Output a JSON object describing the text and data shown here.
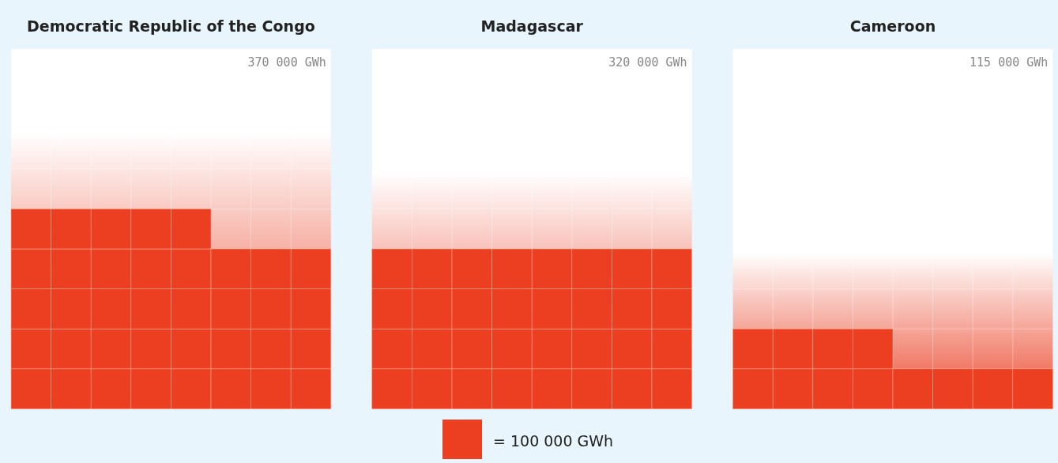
{
  "chart_data": [
    {
      "type": "other",
      "title": "Democratic Republic of the Congo",
      "values": [
        370000
      ],
      "value_labels": [
        "370 000 GWh"
      ],
      "color": "#ec3f22"
    },
    {
      "type": "other",
      "title": "Madagascar",
      "values": [
        320000
      ],
      "value_labels": [
        "320 000 GWh"
      ],
      "color": "#ec3f22"
    },
    {
      "type": "other",
      "title": "Cameroon",
      "values": [
        115000
      ],
      "value_labels": [
        "115 000 GWh"
      ],
      "color": "#ec3f22",
      "annotations": [
        "= 100 000 GWh"
      ]
    }
  ]
}
